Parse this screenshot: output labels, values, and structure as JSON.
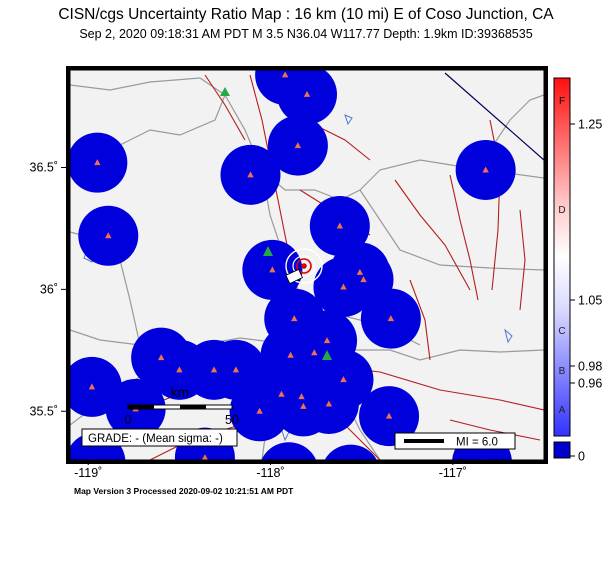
{
  "header": {
    "title": "CISN/cgs Uncertainty Ratio Map : 16 km (10 mi) E of Coso Junction, CA",
    "subtitle": "Sep  2, 2020 09:18:31 AM PDT   M 3.5   N36.04 W117.77   Depth: 1.9km   ID:39368535"
  },
  "map": {
    "lon_range": [
      -119.1,
      -116.5
    ],
    "lat_range": [
      35.3,
      36.9
    ],
    "x_ticks": [
      {
        "value": -119,
        "label": "-119˚"
      },
      {
        "value": -118,
        "label": "-118˚"
      },
      {
        "value": -117,
        "label": "-117˚"
      }
    ],
    "y_ticks": [
      {
        "value": 36.5,
        "label": "36.5˚"
      },
      {
        "value": 36,
        "label": "36˚"
      },
      {
        "value": 35.5,
        "label": "35.5˚"
      }
    ],
    "colors": {
      "ocean_land": "#f2f2f2",
      "station_area": "#0000dd",
      "station": "#f07050",
      "fault": "#b41e1e",
      "road": "#999999",
      "water": "#5577cc",
      "epicenter": "#dd0000"
    },
    "scale_bar": {
      "unit": "km",
      "start_label": "0",
      "end_label": "50"
    },
    "grade_label": "GRADE: - (Mean sigma: -)",
    "mi_legend_label": "MI = 6.0"
  },
  "stations": [
    {
      "lon": -117.8,
      "lat": 36.8
    },
    {
      "lon": -117.92,
      "lat": 36.88
    },
    {
      "lon": -117.85,
      "lat": 36.59
    },
    {
      "lon": -118.11,
      "lat": 36.47
    },
    {
      "lon": -116.82,
      "lat": 36.49
    },
    {
      "lon": -118.89,
      "lat": 36.22
    },
    {
      "lon": -117.62,
      "lat": 36.26
    },
    {
      "lon": -117.99,
      "lat": 36.08
    },
    {
      "lon": -117.51,
      "lat": 36.07
    },
    {
      "lon": -117.34,
      "lat": 35.88
    },
    {
      "lon": -117.49,
      "lat": 36.04
    },
    {
      "lon": -117.6,
      "lat": 36.01
    },
    {
      "lon": -117.87,
      "lat": 35.88
    },
    {
      "lon": -117.69,
      "lat": 35.79
    },
    {
      "lon": -117.76,
      "lat": 35.74
    },
    {
      "lon": -117.89,
      "lat": 35.73
    },
    {
      "lon": -117.6,
      "lat": 35.63
    },
    {
      "lon": -117.68,
      "lat": 35.53
    },
    {
      "lon": -117.82,
      "lat": 35.52
    },
    {
      "lon": -117.83,
      "lat": 35.56
    },
    {
      "lon": -117.94,
      "lat": 35.57
    },
    {
      "lon": -118.06,
      "lat": 35.5
    },
    {
      "lon": -118.19,
      "lat": 35.67
    },
    {
      "lon": -118.31,
      "lat": 35.67
    },
    {
      "lon": -118.5,
      "lat": 35.67
    },
    {
      "lon": -118.6,
      "lat": 35.72
    },
    {
      "lon": -118.98,
      "lat": 35.6
    },
    {
      "lon": -118.74,
      "lat": 35.51
    },
    {
      "lon": -118.96,
      "lat": 35.29
    },
    {
      "lon": -117.9,
      "lat": 35.25
    },
    {
      "lon": -117.56,
      "lat": 35.24
    },
    {
      "lon": -117.35,
      "lat": 35.48
    },
    {
      "lon": -116.84,
      "lat": 35.29
    },
    {
      "lon": -118.36,
      "lat": 35.31
    },
    {
      "lon": -118.95,
      "lat": 36.52
    }
  ],
  "colorbar": {
    "ticks": [
      {
        "value": 1.25,
        "label": "1.25"
      },
      {
        "value": 1.05,
        "label": "1.05"
      },
      {
        "value": 0.98,
        "label": "0.98"
      },
      {
        "value": 0.96,
        "label": "0.96"
      },
      {
        "value": 0,
        "label": "0"
      }
    ],
    "letters": [
      "F",
      "D",
      "C",
      "B",
      "A"
    ]
  },
  "footer": "Map Version 3 Processed 2020-09-02 10:21:51 AM PDT"
}
